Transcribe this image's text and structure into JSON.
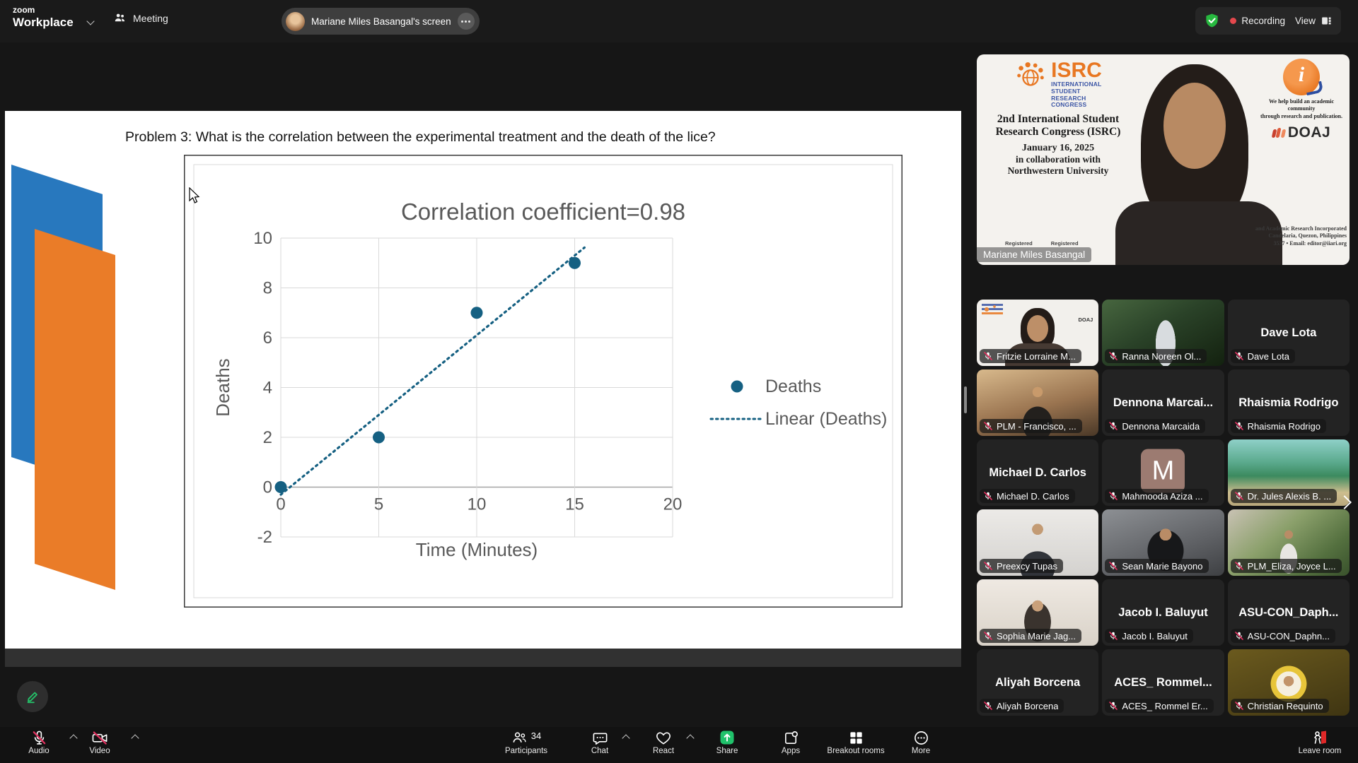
{
  "top_bar": {
    "brand_line1": "zoom",
    "brand_line2": "Workplace",
    "meeting_tab": "Meeting",
    "screen_share_pill": "Mariane Miles Basangal's screen",
    "recording_label": "Recording",
    "view_label": "View"
  },
  "slide": {
    "problem_text": "Problem 3: What is the correlation between the experimental treatment and the death of the lice?"
  },
  "chart_data": {
    "type": "scatter",
    "title": "Correlation coefficient=0.98",
    "xlabel": "Time (Minutes)",
    "ylabel": "Deaths",
    "xlim": [
      0,
      20
    ],
    "ylim": [
      -2,
      10
    ],
    "x_ticks": [
      0,
      5,
      10,
      15,
      20
    ],
    "y_ticks": [
      -2,
      0,
      2,
      4,
      6,
      8,
      10
    ],
    "grid": true,
    "legend_position": "right",
    "series": [
      {
        "name": "Deaths",
        "points": [
          [
            0,
            0
          ],
          [
            5,
            2
          ],
          [
            10,
            7
          ],
          [
            15,
            9
          ]
        ]
      }
    ],
    "trendline": {
      "name": "Linear (Deaths)",
      "slope": 0.64,
      "intercept": -0.3,
      "x_start": 0,
      "x_end": 15.5
    },
    "accent_color": "#156082",
    "text_color": "#595959",
    "grid_color": "#d9d9d9",
    "axis_color": "#a6a6a6"
  },
  "speaker": {
    "name_label": "Mariane Miles Basangal",
    "isrc_word": "ISRC",
    "isrc_sub": [
      "INTERNATIONAL",
      "STUDENT",
      "RESEARCH",
      "CONGRESS"
    ],
    "congress_line1": "2nd International Student",
    "congress_line2": "Research Congress (ISRC)",
    "date_line": "January 16, 2025",
    "collab_line1": "in collaboration with",
    "collab_line2": "Northwestern University",
    "tagline_line1": "We help build an academic community",
    "tagline_line2": "through research and publication.",
    "doaj_label": "DOAJ",
    "iiari_letter": "i",
    "badge1": "Registered",
    "badge2": "Registered",
    "footer_line1": "and Academic Research Incorporated",
    "footer_line2": "Candelaria, Quezon, Philippines",
    "footer_line3": "3537 • Email: editor@iiari.org"
  },
  "participants": [
    {
      "label": "Fritzie Lorraine M...",
      "type": "photo",
      "photo": "isrcmini",
      "person": true,
      "muted": true
    },
    {
      "label": "Ranna Noreen Ol...",
      "type": "photo",
      "photo": "night",
      "person": false,
      "muted": true
    },
    {
      "label": "Dave Lota",
      "center_name": "Dave Lota",
      "type": "name",
      "muted": true
    },
    {
      "label": "PLM - Francisco, ...",
      "type": "photo",
      "photo": "mall",
      "person": false,
      "muted": true
    },
    {
      "label": "Dennona Marcaida",
      "center_name": "Dennona  Marcai...",
      "type": "name",
      "muted": true
    },
    {
      "label": "Rhaismia Rodrigo",
      "center_name": "Rhaismia Rodrigo",
      "type": "name",
      "muted": true
    },
    {
      "label": "Michael D. Carlos",
      "center_name": "Michael D. Carlos",
      "type": "name",
      "muted": true
    },
    {
      "label": "Mahmooda Aziza ...",
      "type": "avatar",
      "initial": "M",
      "muted": true
    },
    {
      "label": "Dr. Jules Alexis B. ...",
      "type": "photo",
      "photo": "beach",
      "person": false,
      "muted": true
    },
    {
      "label": "Preexcy Tupas",
      "type": "photo",
      "photo": "studio",
      "person": false,
      "muted": true
    },
    {
      "label": "Sean Marie Bayono",
      "type": "photo",
      "photo": "selfie",
      "person": false,
      "muted": true
    },
    {
      "label": "PLM_Eliza, Joyce L...",
      "type": "photo",
      "photo": "garden",
      "person": false,
      "muted": true
    },
    {
      "label": "Sophia Marie Jag...",
      "type": "photo",
      "photo": "portrait",
      "person": false,
      "muted": true
    },
    {
      "label": "Jacob I. Baluyut",
      "center_name": "Jacob I. Baluyut",
      "type": "name",
      "muted": true
    },
    {
      "label": "ASU-CON_Daphn...",
      "center_name": "ASU-CON_Daph...",
      "type": "name",
      "muted": true
    },
    {
      "label": "Aliyah Borcena",
      "center_name": "Aliyah Borcena",
      "type": "name",
      "muted": true
    },
    {
      "label": "ACES_ Rommel Er...",
      "center_name": "ACES_ Rommel...",
      "type": "name",
      "muted": true
    },
    {
      "label": "Christian Requinto",
      "type": "photo",
      "photo": "school",
      "person": false,
      "muted": true
    }
  ],
  "toolbar": {
    "audio_label": "Audio",
    "video_label": "Video",
    "participants_label": "Participants",
    "participants_count": "34",
    "chat_label": "Chat",
    "react_label": "React",
    "share_label": "Share",
    "apps_label": "Apps",
    "breakout_label": "Breakout rooms",
    "more_label": "More",
    "leave_label": "Leave room",
    "share_green": "#20c26b",
    "mute_red": "#e0315f"
  }
}
